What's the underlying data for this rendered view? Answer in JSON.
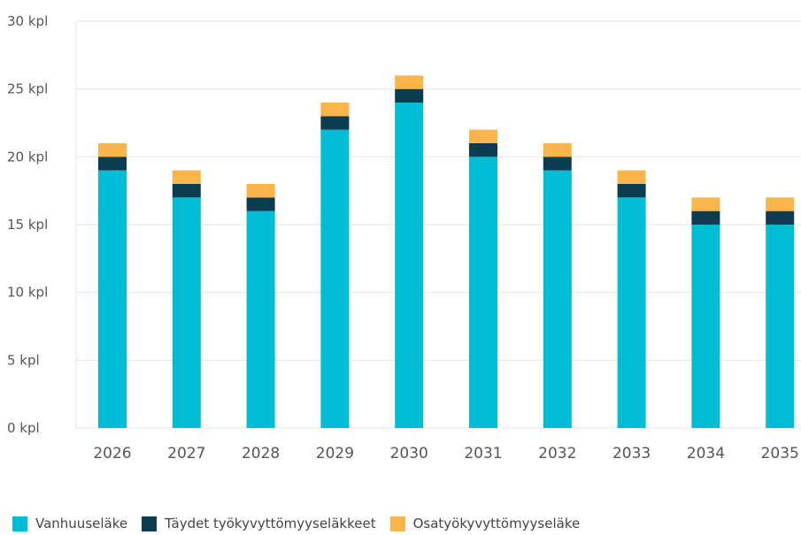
{
  "chart_data": {
    "type": "bar",
    "stacked": true,
    "categories": [
      "2026",
      "2027",
      "2028",
      "2029",
      "2030",
      "2031",
      "2032",
      "2033",
      "2034",
      "2035"
    ],
    "series": [
      {
        "name": "Vanhuuseläke",
        "color": "#00bcd4",
        "values": [
          19,
          17,
          16,
          22,
          24,
          20,
          19,
          17,
          15,
          15
        ]
      },
      {
        "name": "Täydet työkyvyttömyyseläkkeet",
        "color": "#0a3d4f",
        "values": [
          1,
          1,
          1,
          1,
          1,
          1,
          1,
          1,
          1,
          1
        ]
      },
      {
        "name": "Osatyökyvyttömyyseläke",
        "color": "#f9b54a",
        "values": [
          1,
          1,
          1,
          1,
          1,
          1,
          1,
          1,
          1,
          1
        ]
      }
    ],
    "y_ticks": [
      "0 kpl",
      "5 kpl",
      "10 kpl",
      "15 kpl",
      "20 kpl",
      "25 kpl",
      "30 kpl"
    ],
    "ylim": [
      0,
      30
    ],
    "grid": true,
    "legend_position": "bottom-left",
    "title": "",
    "xlabel": "",
    "ylabel": ""
  }
}
